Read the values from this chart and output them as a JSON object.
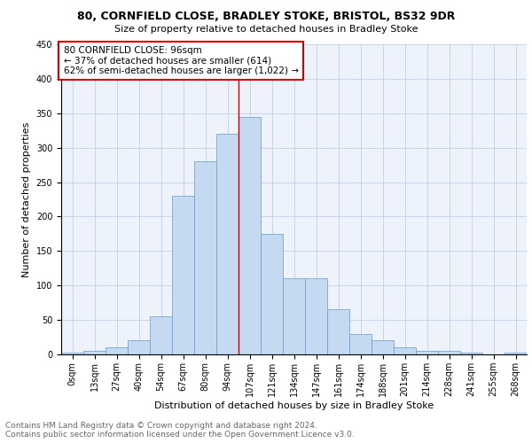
{
  "title1": "80, CORNFIELD CLOSE, BRADLEY STOKE, BRISTOL, BS32 9DR",
  "title2": "Size of property relative to detached houses in Bradley Stoke",
  "xlabel": "Distribution of detached houses by size in Bradley Stoke",
  "ylabel": "Number of detached properties",
  "bar_labels": [
    "0sqm",
    "13sqm",
    "27sqm",
    "40sqm",
    "54sqm",
    "67sqm",
    "80sqm",
    "94sqm",
    "107sqm",
    "121sqm",
    "134sqm",
    "147sqm",
    "161sqm",
    "174sqm",
    "188sqm",
    "201sqm",
    "214sqm",
    "228sqm",
    "241sqm",
    "255sqm",
    "268sqm"
  ],
  "bar_values": [
    2,
    5,
    10,
    20,
    55,
    230,
    280,
    320,
    345,
    175,
    110,
    110,
    65,
    30,
    20,
    10,
    5,
    5,
    2,
    0,
    2
  ],
  "bar_color": "#c5d9f0",
  "bar_edge_color": "#6699cc",
  "vline_x": 7.5,
  "vline_color": "#cc0000",
  "annotation_box_text": "80 CORNFIELD CLOSE: 96sqm\n← 37% of detached houses are smaller (614)\n62% of semi-detached houses are larger (1,022) →",
  "annotation_box_color": "#ffffff",
  "annotation_box_edge_color": "#cc0000",
  "ylim": [
    0,
    450
  ],
  "yticks": [
    0,
    50,
    100,
    150,
    200,
    250,
    300,
    350,
    400,
    450
  ],
  "background_color": "#edf2fb",
  "footer_text": "Contains HM Land Registry data © Crown copyright and database right 2024.\nContains public sector information licensed under the Open Government Licence v3.0.",
  "title1_fontsize": 9,
  "title2_fontsize": 8,
  "xlabel_fontsize": 8,
  "ylabel_fontsize": 8,
  "tick_fontsize": 7,
  "annotation_fontsize": 7.5,
  "footer_fontsize": 6.5
}
